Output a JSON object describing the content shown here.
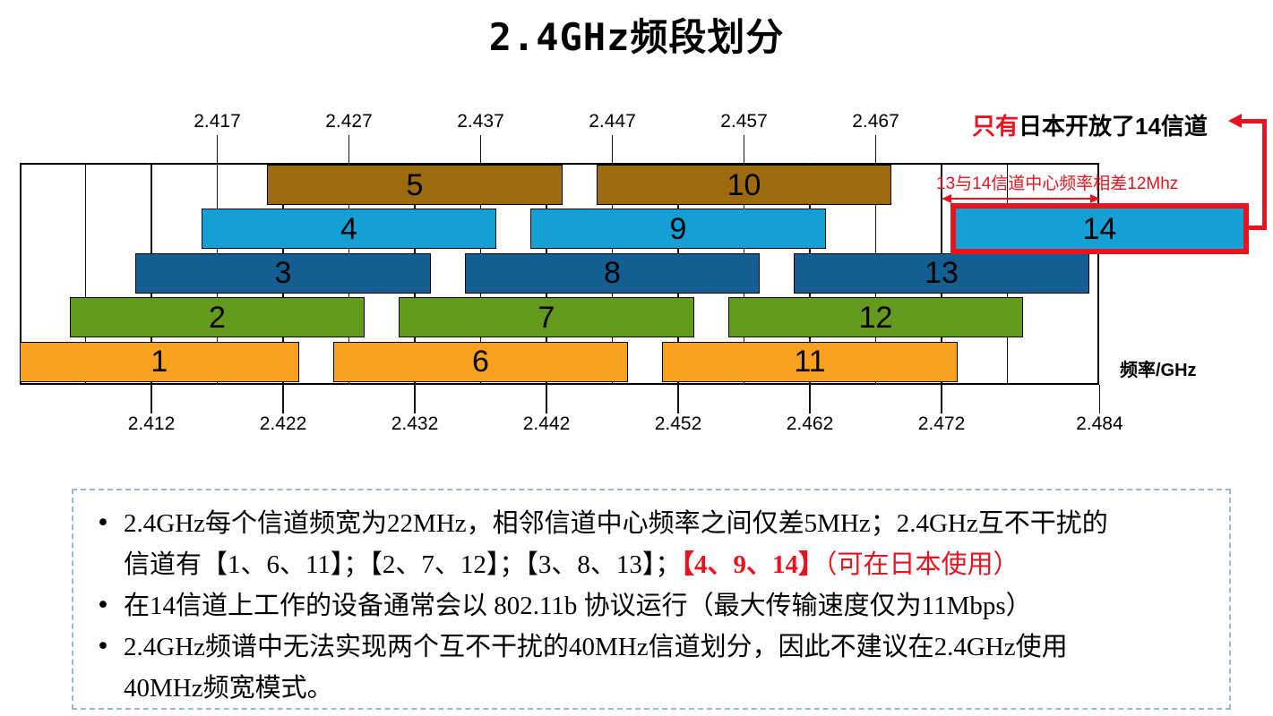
{
  "title": "2.4GHz频段划分",
  "colors": {
    "brown": "#9C6B10",
    "lightblue": "#14A0D4",
    "darkblue": "#135F91",
    "green": "#649A1E",
    "orange": "#F9A21F",
    "red": "#E8131F",
    "axis": "#111111",
    "notes_border": "#9DB6D0"
  },
  "chart_data": {
    "type": "bar",
    "title": "2.4GHz channel allocation diagram",
    "xlabel": "频率/GHz",
    "x_unit": "GHz",
    "xlim": [
      2.402,
      2.484
    ],
    "channel_width_mhz": 22,
    "channel_spacing_mhz": 5,
    "axis_top_ticks": [
      "2.417",
      "2.427",
      "2.437",
      "2.447",
      "2.457",
      "2.467"
    ],
    "axis_bottom_ticks": [
      "2.412",
      "2.422",
      "2.432",
      "2.442",
      "2.452",
      "2.462",
      "2.472",
      "2.484"
    ],
    "grid_ticks": [
      "2.407",
      "2.412",
      "2.417",
      "2.422",
      "2.427",
      "2.432",
      "2.437",
      "2.442",
      "2.447",
      "2.452",
      "2.457",
      "2.462",
      "2.467",
      "2.472",
      "2.477"
    ],
    "channels": [
      {
        "ch": "1",
        "center": 2.412,
        "row": 4,
        "color": "orange"
      },
      {
        "ch": "2",
        "center": 2.417,
        "row": 3,
        "color": "green"
      },
      {
        "ch": "3",
        "center": 2.422,
        "row": 2,
        "color": "darkblue"
      },
      {
        "ch": "4",
        "center": 2.427,
        "row": 1,
        "color": "lightblue"
      },
      {
        "ch": "5",
        "center": 2.432,
        "row": 0,
        "color": "brown"
      },
      {
        "ch": "6",
        "center": 2.437,
        "row": 4,
        "color": "orange"
      },
      {
        "ch": "7",
        "center": 2.442,
        "row": 3,
        "color": "green"
      },
      {
        "ch": "8",
        "center": 2.447,
        "row": 2,
        "color": "darkblue"
      },
      {
        "ch": "9",
        "center": 2.452,
        "row": 1,
        "color": "lightblue"
      },
      {
        "ch": "10",
        "center": 2.457,
        "row": 0,
        "color": "brown"
      },
      {
        "ch": "11",
        "center": 2.462,
        "row": 4,
        "color": "orange"
      },
      {
        "ch": "12",
        "center": 2.467,
        "row": 3,
        "color": "green"
      },
      {
        "ch": "13",
        "center": 2.472,
        "row": 2,
        "color": "darkblue"
      },
      {
        "ch": "14",
        "center": 2.484,
        "row": 1,
        "color": "lightblue",
        "highlight": true
      }
    ]
  },
  "annotations": {
    "japan_note_red": "只有",
    "japan_note_black": "日本开放了14信道",
    "diff_note": "13与14信道中心频率相差12Mhz"
  },
  "notes_box": {
    "bullet_char": "•",
    "bullets": [
      {
        "lines": [
          [
            {
              "t": "2.4GHz每个信道频宽为22MHz，相邻信道中心频率之间仅差5MHz；2.4GHz互不干扰的"
            }
          ],
          [
            {
              "t": "信道有【1、6、11】；【2、7、12】；【3、8、13】；"
            },
            {
              "t": "【4、9、14】",
              "red": true,
              "bold": true
            },
            {
              "t": "（可在日本使用）",
              "red": true
            }
          ]
        ]
      },
      {
        "lines": [
          [
            {
              "t": "在14信道上工作的设备通常会以 802.11b 协议运行（最大传输速度仅为11Mbps）"
            }
          ]
        ]
      },
      {
        "lines": [
          [
            {
              "t": "2.4GHz频谱中无法实现两个互不干扰的40MHz信道划分，因此不建议在2.4GHz使用"
            }
          ],
          [
            {
              "t": "40MHz频宽模式。"
            }
          ]
        ]
      }
    ]
  }
}
